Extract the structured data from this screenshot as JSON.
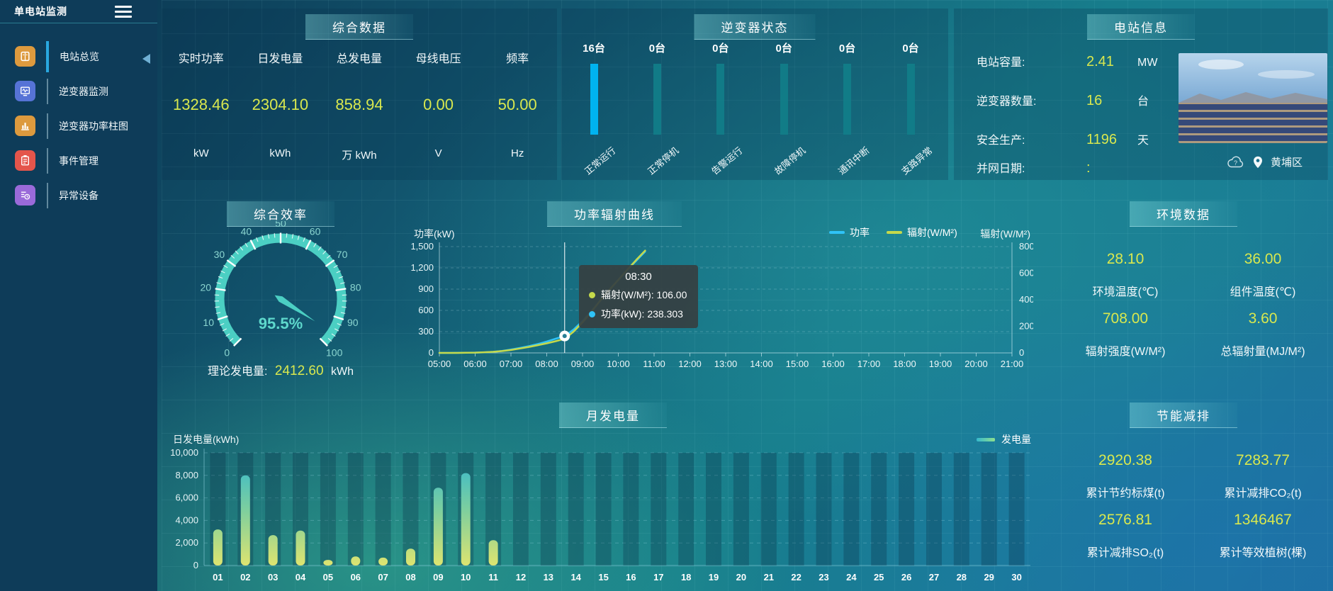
{
  "app": {
    "title": "单电站监测"
  },
  "sidebar": {
    "items": [
      {
        "label": "电站总览",
        "icon": "overview-icon",
        "icon_bg": "#dd9a3e",
        "active": true
      },
      {
        "label": "逆变器监测",
        "icon": "inverter-monitor-icon",
        "icon_bg": "#5673d6",
        "active": false
      },
      {
        "label": "逆变器功率柱图",
        "icon": "power-bars-icon",
        "icon_bg": "#dd9a3e",
        "active": false
      },
      {
        "label": "事件管理",
        "icon": "event-manage-icon",
        "icon_bg": "#e4554b",
        "active": false
      },
      {
        "label": "异常设备",
        "icon": "abnormal-device-icon",
        "icon_bg": "#9a6ad9",
        "active": false
      }
    ]
  },
  "summary": {
    "title": "综合数据",
    "metrics": [
      {
        "label": "实时功率",
        "value": "1328.46",
        "unit": "kW"
      },
      {
        "label": "日发电量",
        "value": "2304.10",
        "unit": "kWh"
      },
      {
        "label": "总发电量",
        "value": "858.94",
        "unit": "万 kWh"
      },
      {
        "label": "母线电压",
        "value": "0.00",
        "unit": "V"
      },
      {
        "label": "频率",
        "value": "50.00",
        "unit": "Hz"
      }
    ]
  },
  "inverter_status": {
    "title": "逆变器状态",
    "colors": {
      "highlight": "#00b3f0",
      "idle": "#117e89"
    },
    "items": [
      {
        "count": "16台",
        "label": "正常运行",
        "highlight": true
      },
      {
        "count": "0台",
        "label": "正常停机",
        "highlight": false
      },
      {
        "count": "0台",
        "label": "告警运行",
        "highlight": false
      },
      {
        "count": "0台",
        "label": "故障停机",
        "highlight": false
      },
      {
        "count": "0台",
        "label": "通讯中断",
        "highlight": false
      },
      {
        "count": "0台",
        "label": "支路异常",
        "highlight": false
      }
    ]
  },
  "station_info": {
    "title": "电站信息",
    "rows": [
      {
        "label": "电站容量:",
        "value": "2.41",
        "unit": "MW"
      },
      {
        "label": "逆变器数量:",
        "value": "16",
        "unit": "台"
      },
      {
        "label": "安全生产:",
        "value": "1196",
        "unit": "天"
      },
      {
        "label": "并网日期: ",
        "value": ":",
        "unit": ""
      }
    ],
    "location": "黄埔区"
  },
  "efficiency": {
    "title": "综合效率",
    "gauge": {
      "value": 95.5,
      "display": "95.5%",
      "min": 0,
      "max": 100,
      "tick_step": 10,
      "color": "#4bcfc3"
    },
    "theoretical": {
      "label": "理论发电量:",
      "value": "2412.60",
      "unit": "kWh"
    }
  },
  "power_radiation": {
    "title": "功率辐射曲线",
    "left_axis_label": "功率(kW)",
    "right_axis_label": "辐射(W/M²)",
    "chart": {
      "type": "line",
      "x_ticks": [
        "05:00",
        "06:00",
        "07:00",
        "08:00",
        "09:00",
        "10:00",
        "11:00",
        "12:00",
        "13:00",
        "14:00",
        "15:00",
        "16:00",
        "17:00",
        "18:00",
        "19:00",
        "20:00",
        "21:00"
      ],
      "x_start_hour": 5,
      "x_end_hour": 21,
      "left_ticks": [
        "0",
        "300",
        "600",
        "900",
        "1,200",
        "1,500"
      ],
      "left_max": 1500,
      "right_ticks": [
        "0",
        "200",
        "400",
        "600",
        "800"
      ],
      "right_max": 800,
      "series": [
        {
          "name": "功率",
          "color": "#2fc3f7",
          "axis": "left",
          "x_step_hours": 0.25,
          "values": [
            0,
            0,
            1,
            2,
            4,
            8,
            15,
            28,
            48,
            70,
            95,
            125,
            160,
            200,
            238.3,
            330,
            450,
            590,
            740,
            890,
            1030,
            1170,
            1300,
            1430
          ]
        },
        {
          "name": "辐射(W/M²)",
          "color": "#c5d94b",
          "axis": "right",
          "x_step_hours": 0.25,
          "values": [
            0,
            0,
            0,
            1,
            2,
            5,
            8,
            14,
            22,
            33,
            45,
            58,
            72,
            88,
            106,
            160,
            230,
            310,
            395,
            475,
            550,
            625,
            700,
            770
          ]
        }
      ]
    },
    "tooltip": {
      "time": "08:30",
      "x_hour": 8.5,
      "rows": [
        {
          "name": "辐射(W/M²)",
          "value": "106.00",
          "color": "#c5d94b"
        },
        {
          "name": "功率(kW)",
          "value": "238.303",
          "color": "#2fc3f7"
        }
      ],
      "marker": {
        "axis": "left",
        "value": 238.303
      }
    }
  },
  "environment": {
    "title": "环境数据",
    "items": [
      {
        "value": "28.10",
        "label": "环境温度(℃)"
      },
      {
        "value": "36.00",
        "label": "组件温度(℃)"
      },
      {
        "value": "708.00",
        "label": "辐射强度(W/M²)"
      },
      {
        "value": "3.60",
        "label": "总辐射量(MJ/M²)"
      }
    ]
  },
  "monthly_energy": {
    "title": "月发电量",
    "legend_label": "发电量",
    "chart": {
      "type": "bar",
      "ylabel": "日发电量(kWh)",
      "y_ticks": [
        "0",
        "2,000",
        "4,000",
        "6,000",
        "8,000",
        "10,000"
      ],
      "ymax": 10000,
      "categories": [
        "01",
        "02",
        "03",
        "04",
        "05",
        "06",
        "07",
        "08",
        "09",
        "10",
        "11",
        "12",
        "13",
        "14",
        "15",
        "16",
        "17",
        "18",
        "19",
        "20",
        "21",
        "22",
        "23",
        "24",
        "25",
        "26",
        "27",
        "28",
        "29",
        "30"
      ],
      "values": [
        3200,
        8000,
        2700,
        3100,
        500,
        800,
        700,
        1500,
        6900,
        8200,
        2250,
        0,
        0,
        0,
        0,
        0,
        0,
        0,
        0,
        0,
        0,
        0,
        0,
        0,
        0,
        0,
        0,
        0,
        0,
        0
      ],
      "bar_gradient": [
        "#dde470",
        "#7ccf9f",
        "#2fb6d3"
      ]
    }
  },
  "savings": {
    "title": "节能减排",
    "items": [
      {
        "value": "2920.38",
        "label": "累计节约标煤(t)"
      },
      {
        "value": "7283.77",
        "label": "累计减排CO₂(t)"
      },
      {
        "value": "2576.81",
        "label": "累计减排SO₂(t)"
      },
      {
        "value": "1346467",
        "label": "累计等效植树(棵)"
      }
    ]
  }
}
